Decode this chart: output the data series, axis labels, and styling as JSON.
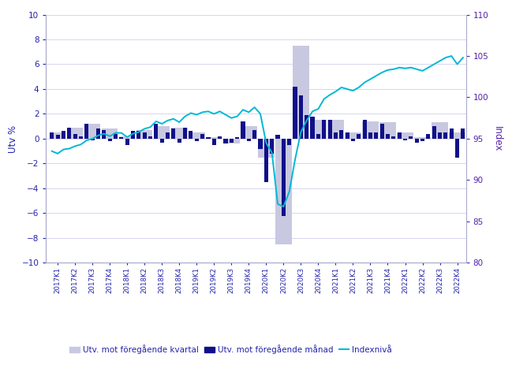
{
  "ylabel_left": "Utv %",
  "ylabel_right": "Index",
  "ylim_left": [
    -10,
    10
  ],
  "ylim_right": [
    80,
    110
  ],
  "yticks_left": [
    -10,
    -8,
    -6,
    -4,
    -2,
    0,
    2,
    4,
    6,
    8,
    10
  ],
  "yticks_right": [
    80,
    85,
    90,
    95,
    100,
    105,
    110
  ],
  "bg_color": "#ffffff",
  "grid_color": "#d0d0ee",
  "bar_dark_color": "#10108a",
  "bar_light_color": "#c8c8e0",
  "line_color": "#00b8d4",
  "legend_labels": [
    "Utv. mot föregående kvartal",
    "Utv. mot föregående månad",
    "Indexnivå"
  ],
  "categories": [
    "2017K1",
    "2017K2",
    "2017K3",
    "2017K4",
    "2018K1",
    "2018K2",
    "2018K3",
    "2018K4",
    "2019K1",
    "2019K2",
    "2019K3",
    "2019K4",
    "2020K1",
    "2020K2",
    "2020K3",
    "2020K4",
    "2021K1",
    "2021K2",
    "2021K3",
    "2021K4",
    "2022K1",
    "2022K2",
    "2022K3",
    "2022K4"
  ],
  "quarterly_bars": [
    0.5,
    0.9,
    1.2,
    0.8,
    0.2,
    0.7,
    1.0,
    0.9,
    0.5,
    0.1,
    -0.4,
    1.0,
    -1.5,
    -8.5,
    7.5,
    1.5,
    1.5,
    0.5,
    1.4,
    1.3,
    0.5,
    0.1,
    1.3,
    0.5
  ],
  "monthly_bars": [
    0.5,
    0.3,
    0.6,
    0.9,
    0.4,
    0.2,
    1.2,
    -0.1,
    0.8,
    0.7,
    -0.2,
    0.4,
    0.1,
    -0.5,
    0.6,
    0.6,
    0.5,
    0.2,
    1.2,
    -0.3,
    0.5,
    0.8,
    -0.3,
    0.9,
    0.6,
    -0.2,
    0.4,
    0.1,
    -0.5,
    0.2,
    -0.4,
    -0.3,
    0.1,
    1.4,
    -0.2,
    0.7,
    -0.8,
    -3.5,
    -1.2,
    0.3,
    -6.2,
    -0.5,
    4.2,
    3.5,
    1.9,
    1.8,
    0.4,
    1.5,
    1.5,
    0.5,
    0.7,
    0.5,
    -0.2,
    0.4,
    1.5,
    0.5,
    0.5,
    1.2,
    0.4,
    0.2,
    0.5,
    -0.1,
    0.2,
    -0.3,
    -0.2,
    0.4,
    1.0,
    0.5,
    0.5,
    0.8,
    -1.5,
    0.8
  ],
  "index_monthly": [
    93.5,
    93.2,
    93.7,
    93.8,
    94.1,
    94.3,
    94.8,
    95.0,
    95.4,
    95.6,
    95.3,
    95.7,
    95.7,
    95.2,
    95.6,
    95.8,
    96.2,
    96.4,
    97.1,
    96.8,
    97.2,
    97.4,
    97.0,
    97.7,
    98.1,
    97.9,
    98.2,
    98.3,
    98.0,
    98.3,
    97.9,
    97.5,
    97.7,
    98.5,
    98.2,
    98.8,
    98.0,
    94.5,
    93.3,
    87.1,
    86.8,
    88.6,
    92.5,
    95.8,
    97.2,
    98.3,
    98.6,
    99.8,
    100.3,
    100.7,
    101.2,
    101.0,
    100.8,
    101.2,
    101.8,
    102.2,
    102.6,
    103.0,
    103.3,
    103.4,
    103.6,
    103.5,
    103.6,
    103.4,
    103.2,
    103.6,
    104.0,
    104.4,
    104.8,
    105.0,
    104.0,
    104.8
  ]
}
